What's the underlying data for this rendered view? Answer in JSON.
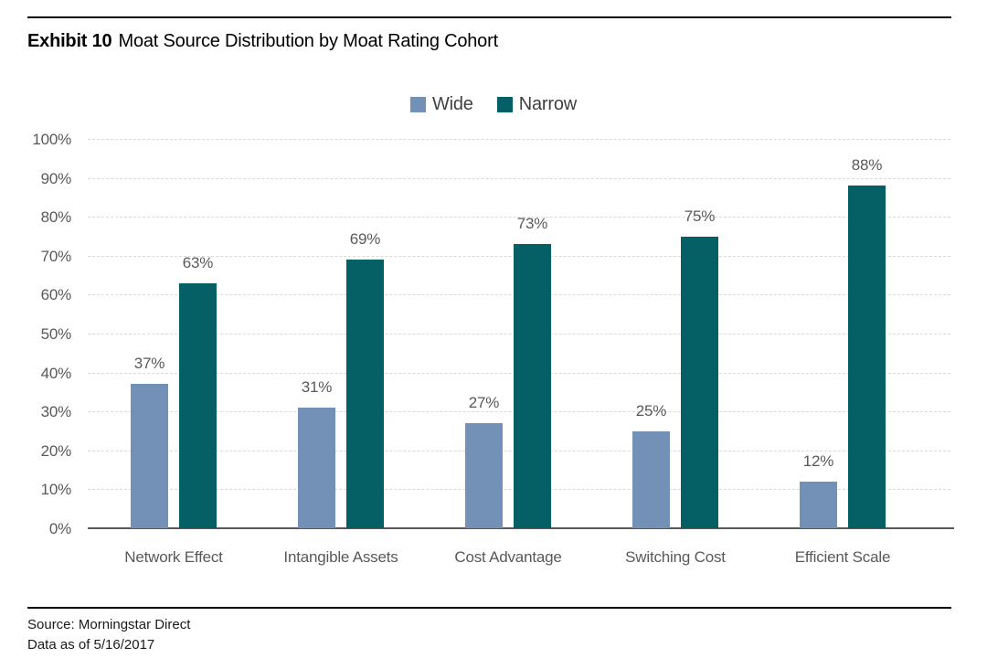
{
  "page": {
    "title_prefix": "Exhibit 10",
    "title_text": "Moat Source Distribution by Moat Rating Cohort",
    "source_line": "Source: Morningstar Direct",
    "asof_line": "Data as of 5/16/2017"
  },
  "colors": {
    "wide_series": "#7391b6",
    "narrow_series": "#046065",
    "gridline": "#d9d9d9",
    "axis": "#595959",
    "text_labels": "#595959",
    "rule": "#000000"
  },
  "chart_data": {
    "type": "bar",
    "title": "Moat Source Distribution by Moat Rating Cohort",
    "categories": [
      "Network Effect",
      "Intangible Assets",
      "Cost Advantage",
      "Switching Cost",
      "Efficient Scale"
    ],
    "series": [
      {
        "name": "Wide",
        "color": "#7391b6",
        "values": [
          37,
          31,
          27,
          25,
          12
        ],
        "value_labels": [
          "37%",
          "31%",
          "27%",
          "25%",
          "12%"
        ]
      },
      {
        "name": "Narrow",
        "color": "#046065",
        "values": [
          63,
          69,
          73,
          75,
          88
        ],
        "value_labels": [
          "63%",
          "69%",
          "73%",
          "75%",
          "88%"
        ]
      }
    ],
    "xlabel": "",
    "ylabel": "",
    "ylim": [
      0,
      100
    ],
    "y_ticks": [
      "0%",
      "10%",
      "20%",
      "30%",
      "40%",
      "50%",
      "60%",
      "70%",
      "80%",
      "90%",
      "100%"
    ],
    "grid": "horizontal-dashed",
    "legend_position": "top-center",
    "value_label_format": "percent"
  }
}
